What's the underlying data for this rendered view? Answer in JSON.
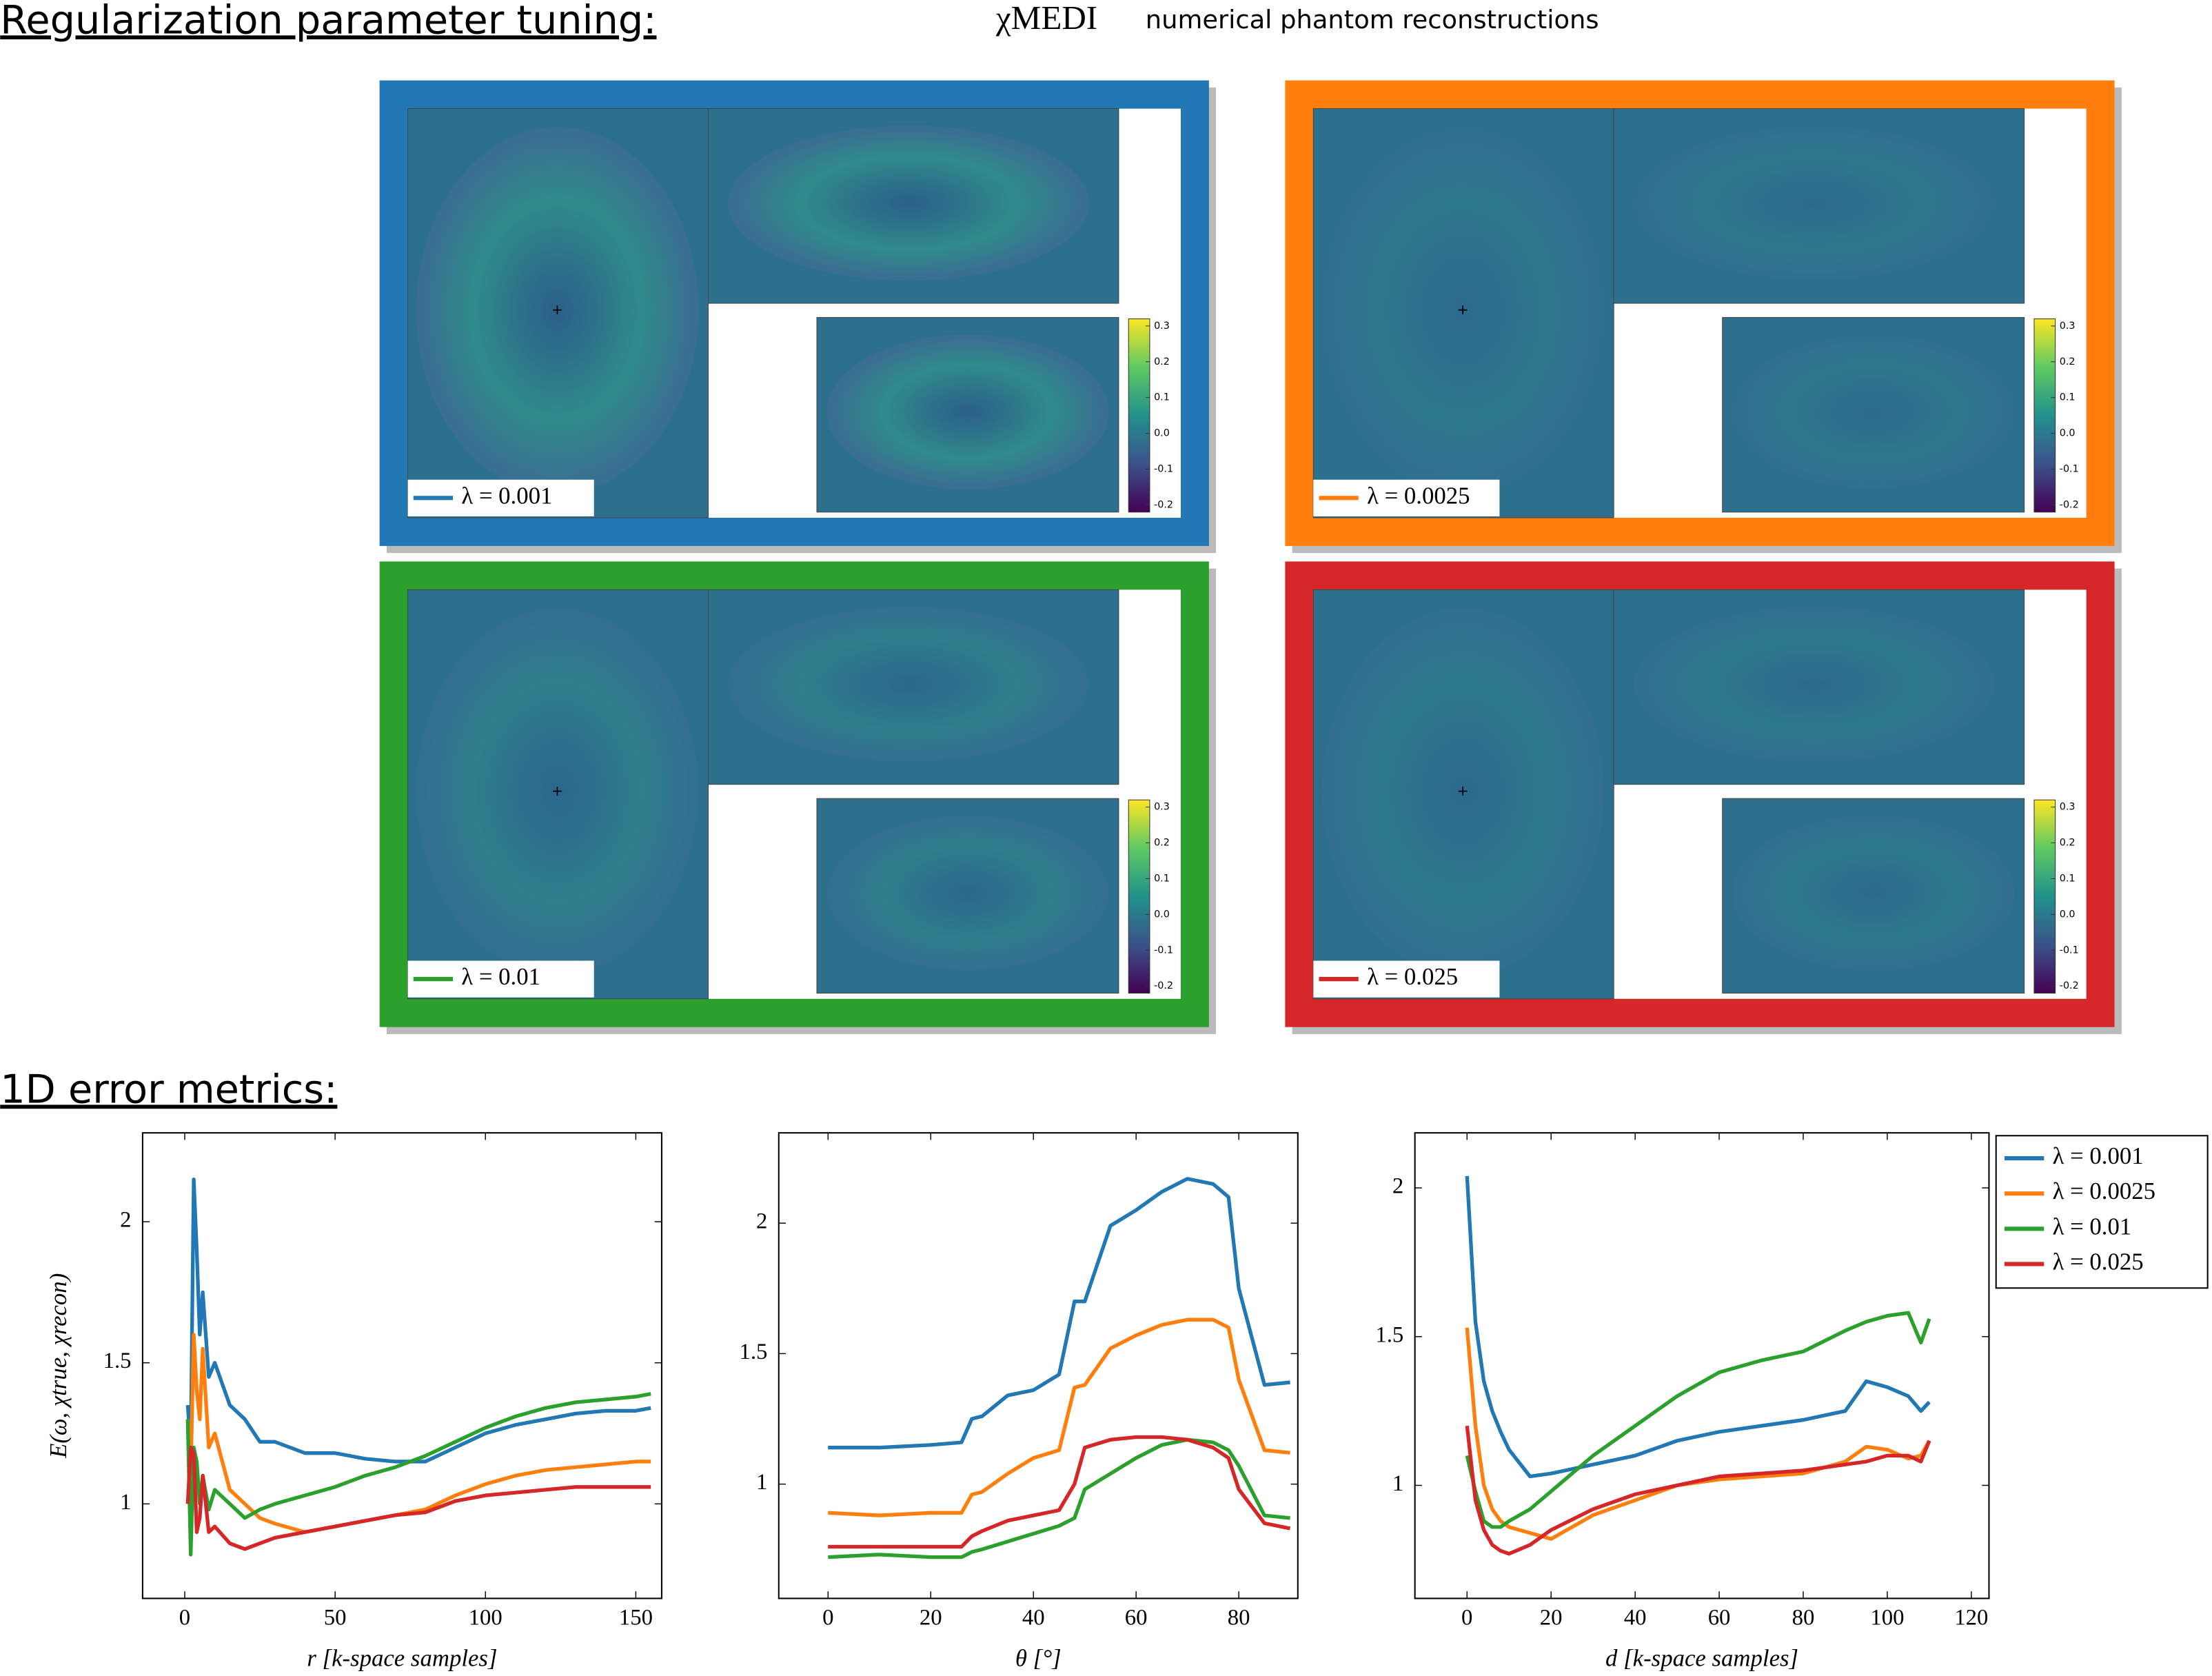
{
  "heading": {
    "title": "Regularization parameter tuning:",
    "symbol": "χMEDI",
    "subtitle": "numerical phantom reconstructions",
    "metrics_title": "1D error metrics:"
  },
  "panels": [
    {
      "label": "λ = 0.001",
      "color": "#2178b4"
    },
    {
      "label": "λ = 0.0025",
      "color": "#ff7f0e"
    },
    {
      "label": "λ = 0.01",
      "color": "#2ca02c"
    },
    {
      "label": "λ = 0.025",
      "color": "#d62728"
    }
  ],
  "colorbar": {
    "ticks": [
      0.3,
      0.2,
      0.1,
      {
        "value": 0,
        "label": "0.0"
      },
      -0.1,
      -0.2
    ],
    "lim": [
      -0.22,
      0.32
    ]
  },
  "chart_data": [
    {
      "type": "line",
      "xlabel": "r    [k-space samples]",
      "ylabel": "E(ω, χtrue, χrecon)",
      "x": [
        1,
        2,
        3,
        4,
        5,
        6,
        8,
        10,
        15,
        20,
        25,
        30,
        40,
        50,
        60,
        70,
        80,
        90,
        100,
        110,
        120,
        130,
        140,
        150,
        155
      ],
      "series": [
        {
          "color": "#2178b4",
          "values": [
            1.35,
            1.2,
            2.15,
            1.9,
            1.6,
            1.75,
            1.45,
            1.5,
            1.35,
            1.3,
            1.22,
            1.22,
            1.18,
            1.18,
            1.16,
            1.15,
            1.15,
            1.2,
            1.25,
            1.28,
            1.3,
            1.32,
            1.33,
            1.33,
            1.34
          ]
        },
        {
          "color": "#ff7f0e",
          "values": [
            1.3,
            1.1,
            1.6,
            1.4,
            1.3,
            1.55,
            1.2,
            1.25,
            1.05,
            1.0,
            0.95,
            0.93,
            0.9,
            0.92,
            0.94,
            0.96,
            0.98,
            1.03,
            1.07,
            1.1,
            1.12,
            1.13,
            1.14,
            1.15,
            1.15
          ]
        },
        {
          "color": "#2ca02c",
          "values": [
            1.3,
            0.82,
            1.2,
            1.15,
            1.0,
            1.1,
            0.98,
            1.05,
            1.0,
            0.95,
            0.98,
            1.0,
            1.03,
            1.06,
            1.1,
            1.13,
            1.17,
            1.22,
            1.27,
            1.31,
            1.34,
            1.36,
            1.37,
            1.38,
            1.39
          ]
        },
        {
          "color": "#d62728",
          "values": [
            1.0,
            1.2,
            1.18,
            0.9,
            0.95,
            1.1,
            0.9,
            0.92,
            0.86,
            0.84,
            0.86,
            0.88,
            0.9,
            0.92,
            0.94,
            0.96,
            0.97,
            1.01,
            1.03,
            1.04,
            1.05,
            1.06,
            1.06,
            1.06,
            1.06
          ]
        }
      ],
      "xlim": [
        -14,
        158.6
      ],
      "ylim": [
        0.665,
        2.315
      ],
      "xticks": [
        0,
        50,
        100,
        150
      ],
      "yticks": [
        1,
        1.5,
        2
      ]
    },
    {
      "type": "line",
      "xlabel": "θ        [°]",
      "x": [
        0,
        10,
        20,
        26,
        28,
        30,
        35,
        40,
        45,
        48,
        50,
        55,
        60,
        65,
        70,
        75,
        78,
        80,
        85,
        90
      ],
      "series": [
        {
          "color": "#2178b4",
          "values": [
            1.14,
            1.14,
            1.15,
            1.16,
            1.25,
            1.26,
            1.34,
            1.36,
            1.42,
            1.7,
            1.7,
            1.99,
            2.05,
            2.12,
            2.17,
            2.15,
            2.1,
            1.75,
            1.38,
            1.39
          ]
        },
        {
          "color": "#ff7f0e",
          "values": [
            0.89,
            0.88,
            0.89,
            0.89,
            0.96,
            0.97,
            1.04,
            1.1,
            1.13,
            1.37,
            1.38,
            1.52,
            1.57,
            1.61,
            1.63,
            1.63,
            1.6,
            1.4,
            1.13,
            1.12
          ]
        },
        {
          "color": "#2ca02c",
          "values": [
            0.72,
            0.73,
            0.72,
            0.72,
            0.74,
            0.75,
            0.78,
            0.81,
            0.84,
            0.87,
            0.98,
            1.04,
            1.1,
            1.15,
            1.17,
            1.16,
            1.13,
            1.07,
            0.88,
            0.87
          ]
        },
        {
          "color": "#d62728",
          "values": [
            0.76,
            0.76,
            0.76,
            0.76,
            0.8,
            0.82,
            0.86,
            0.88,
            0.9,
            1.0,
            1.14,
            1.17,
            1.18,
            1.18,
            1.17,
            1.14,
            1.1,
            0.98,
            0.85,
            0.83
          ]
        }
      ],
      "xlim": [
        -9.6,
        91.5
      ],
      "ylim": [
        0.562,
        2.346
      ],
      "xticks": [
        0,
        20,
        40,
        60,
        80
      ],
      "yticks": [
        1,
        1.5,
        2
      ]
    },
    {
      "type": "line",
      "xlabel": "d    [k-space samples]",
      "legend": "outside-right",
      "x": [
        0,
        2,
        4,
        6,
        8,
        10,
        15,
        20,
        30,
        40,
        50,
        60,
        70,
        80,
        90,
        95,
        100,
        105,
        108,
        110
      ],
      "series": [
        {
          "name": "λ = 0.001",
          "color": "#2178b4",
          "values": [
            2.04,
            1.55,
            1.35,
            1.25,
            1.18,
            1.12,
            1.03,
            1.04,
            1.07,
            1.1,
            1.15,
            1.18,
            1.2,
            1.22,
            1.25,
            1.35,
            1.33,
            1.3,
            1.25,
            1.28
          ]
        },
        {
          "name": "λ = 0.0025",
          "color": "#ff7f0e",
          "values": [
            1.53,
            1.2,
            1.0,
            0.92,
            0.88,
            0.86,
            0.84,
            0.82,
            0.9,
            0.95,
            1.0,
            1.02,
            1.03,
            1.04,
            1.08,
            1.13,
            1.12,
            1.09,
            1.1,
            1.15
          ]
        },
        {
          "name": "λ = 0.01",
          "color": "#2ca02c",
          "values": [
            1.1,
            0.98,
            0.88,
            0.86,
            0.86,
            0.88,
            0.92,
            0.98,
            1.1,
            1.2,
            1.3,
            1.38,
            1.42,
            1.45,
            1.52,
            1.55,
            1.57,
            1.58,
            1.48,
            1.56
          ]
        },
        {
          "name": "λ = 0.025",
          "color": "#d62728",
          "values": [
            1.2,
            0.95,
            0.85,
            0.8,
            0.78,
            0.77,
            0.8,
            0.85,
            0.92,
            0.97,
            1.0,
            1.03,
            1.04,
            1.05,
            1.07,
            1.08,
            1.1,
            1.1,
            1.08,
            1.15
          ]
        }
      ],
      "xlim": [
        -12.4,
        124.2
      ],
      "ylim": [
        0.62,
        2.185
      ],
      "xticks": [
        0,
        20,
        40,
        60,
        80,
        100,
        120
      ],
      "yticks": [
        1,
        1.5,
        2
      ]
    }
  ]
}
